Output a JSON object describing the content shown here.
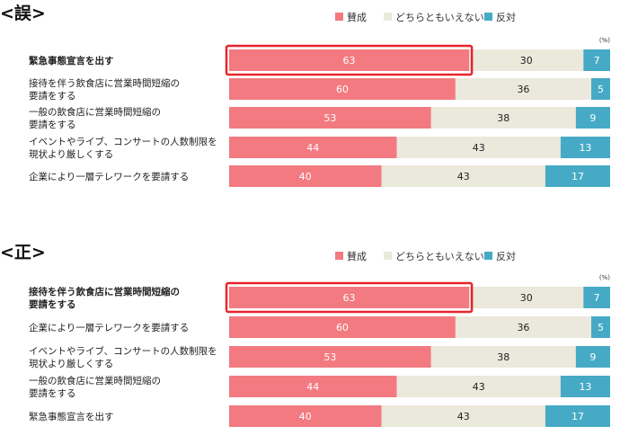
{
  "chart_data": [
    {
      "type": "bar",
      "orientation": "horizontal-stacked",
      "title": "<誤>",
      "unit": "(%)",
      "legend": [
        "賛成",
        "どちらともいえない",
        "反対"
      ],
      "legend_position": "top-right",
      "categories": [
        [
          "緊急事態宣言を出す"
        ],
        [
          "接待を伴う飲食店に営業時間短縮の",
          "要請をする"
        ],
        [
          "一般の飲食店に営業時間短縮の",
          "要請をする"
        ],
        [
          "イベントやライブ、コンサートの人数制限を",
          "現状より厳しくする"
        ],
        [
          "企業により一層テレワークを要請する"
        ]
      ],
      "series": [
        {
          "name": "賛成",
          "values": [
            63,
            60,
            53,
            44,
            40
          ],
          "color": "#f27a80"
        },
        {
          "name": "どちらともいえない",
          "values": [
            30,
            36,
            38,
            43,
            43
          ],
          "color": "#ebe8dc"
        },
        {
          "name": "反対",
          "values": [
            7,
            5,
            9,
            13,
            17
          ],
          "color": "#46aac6"
        }
      ],
      "highlight_index": 0,
      "highlight_color": "#e8242c"
    },
    {
      "type": "bar",
      "orientation": "horizontal-stacked",
      "title": "<正>",
      "unit": "(%)",
      "legend": [
        "賛成",
        "どちらともいえない",
        "反対"
      ],
      "legend_position": "top-right",
      "categories": [
        [
          "接待を伴う飲食店に営業時間短縮の",
          "要請をする"
        ],
        [
          "企業により一層テレワークを要請する"
        ],
        [
          "イベントやライブ、コンサートの人数制限を",
          "現状より厳しくする"
        ],
        [
          "一般の飲食店に営業時間短縮の",
          "要請をする"
        ],
        [
          "緊急事態宣言を出す"
        ]
      ],
      "series": [
        {
          "name": "賛成",
          "values": [
            63,
            60,
            53,
            44,
            40
          ],
          "color": "#f27a80"
        },
        {
          "name": "どちらともいえない",
          "values": [
            30,
            36,
            38,
            43,
            43
          ],
          "color": "#ebe8dc"
        },
        {
          "name": "反対",
          "values": [
            7,
            5,
            9,
            13,
            17
          ],
          "color": "#46aac6"
        }
      ],
      "highlight_index": 0,
      "highlight_color": "#e8242c"
    }
  ]
}
